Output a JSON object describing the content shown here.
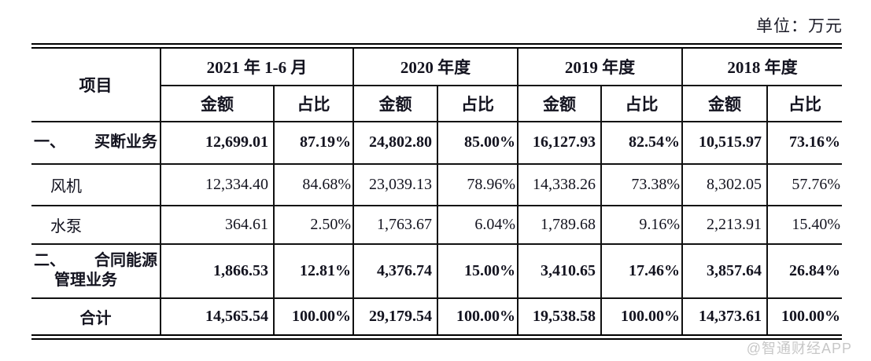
{
  "unit_label": "单位：万元",
  "watermark": {
    "text": "@智通财经APP"
  },
  "colors": {
    "text": "#13131f",
    "border": "#111111",
    "watermark": "#c7c7c7",
    "background": "#ffffff"
  },
  "table": {
    "item_header": "项目",
    "period_headers": [
      "2021 年 1-6 月",
      "2020 年度",
      "2019 年度",
      "2018 年度"
    ],
    "sub_headers": {
      "amount": "金额",
      "ratio": "占比"
    },
    "rows": [
      {
        "prefix": "一、",
        "name": "买断业务",
        "cells": [
          "12,699.01",
          "87.19%",
          "24,802.80",
          "85.00%",
          "16,127.93",
          "82.54%",
          "10,515.97",
          "73.16%"
        ]
      },
      {
        "name": "风机",
        "cells": [
          "12,334.40",
          "84.68%",
          "23,039.13",
          "78.96%",
          "14,338.26",
          "73.38%",
          "8,302.05",
          "57.76%"
        ]
      },
      {
        "name": "水泵",
        "cells": [
          "364.61",
          "2.50%",
          "1,763.67",
          "6.04%",
          "1,789.68",
          "9.16%",
          "2,213.91",
          "15.40%"
        ]
      },
      {
        "prefix": "二、",
        "name": "合同能源",
        "name2": "管理业务",
        "cells": [
          "1,866.53",
          "12.81%",
          "4,376.74",
          "15.00%",
          "3,410.65",
          "17.46%",
          "3,857.64",
          "26.84%"
        ]
      },
      {
        "name": "合计",
        "cells": [
          "14,565.54",
          "100.00%",
          "29,179.54",
          "100.00%",
          "19,538.58",
          "100.00%",
          "14,373.61",
          "100.00%"
        ]
      }
    ]
  }
}
